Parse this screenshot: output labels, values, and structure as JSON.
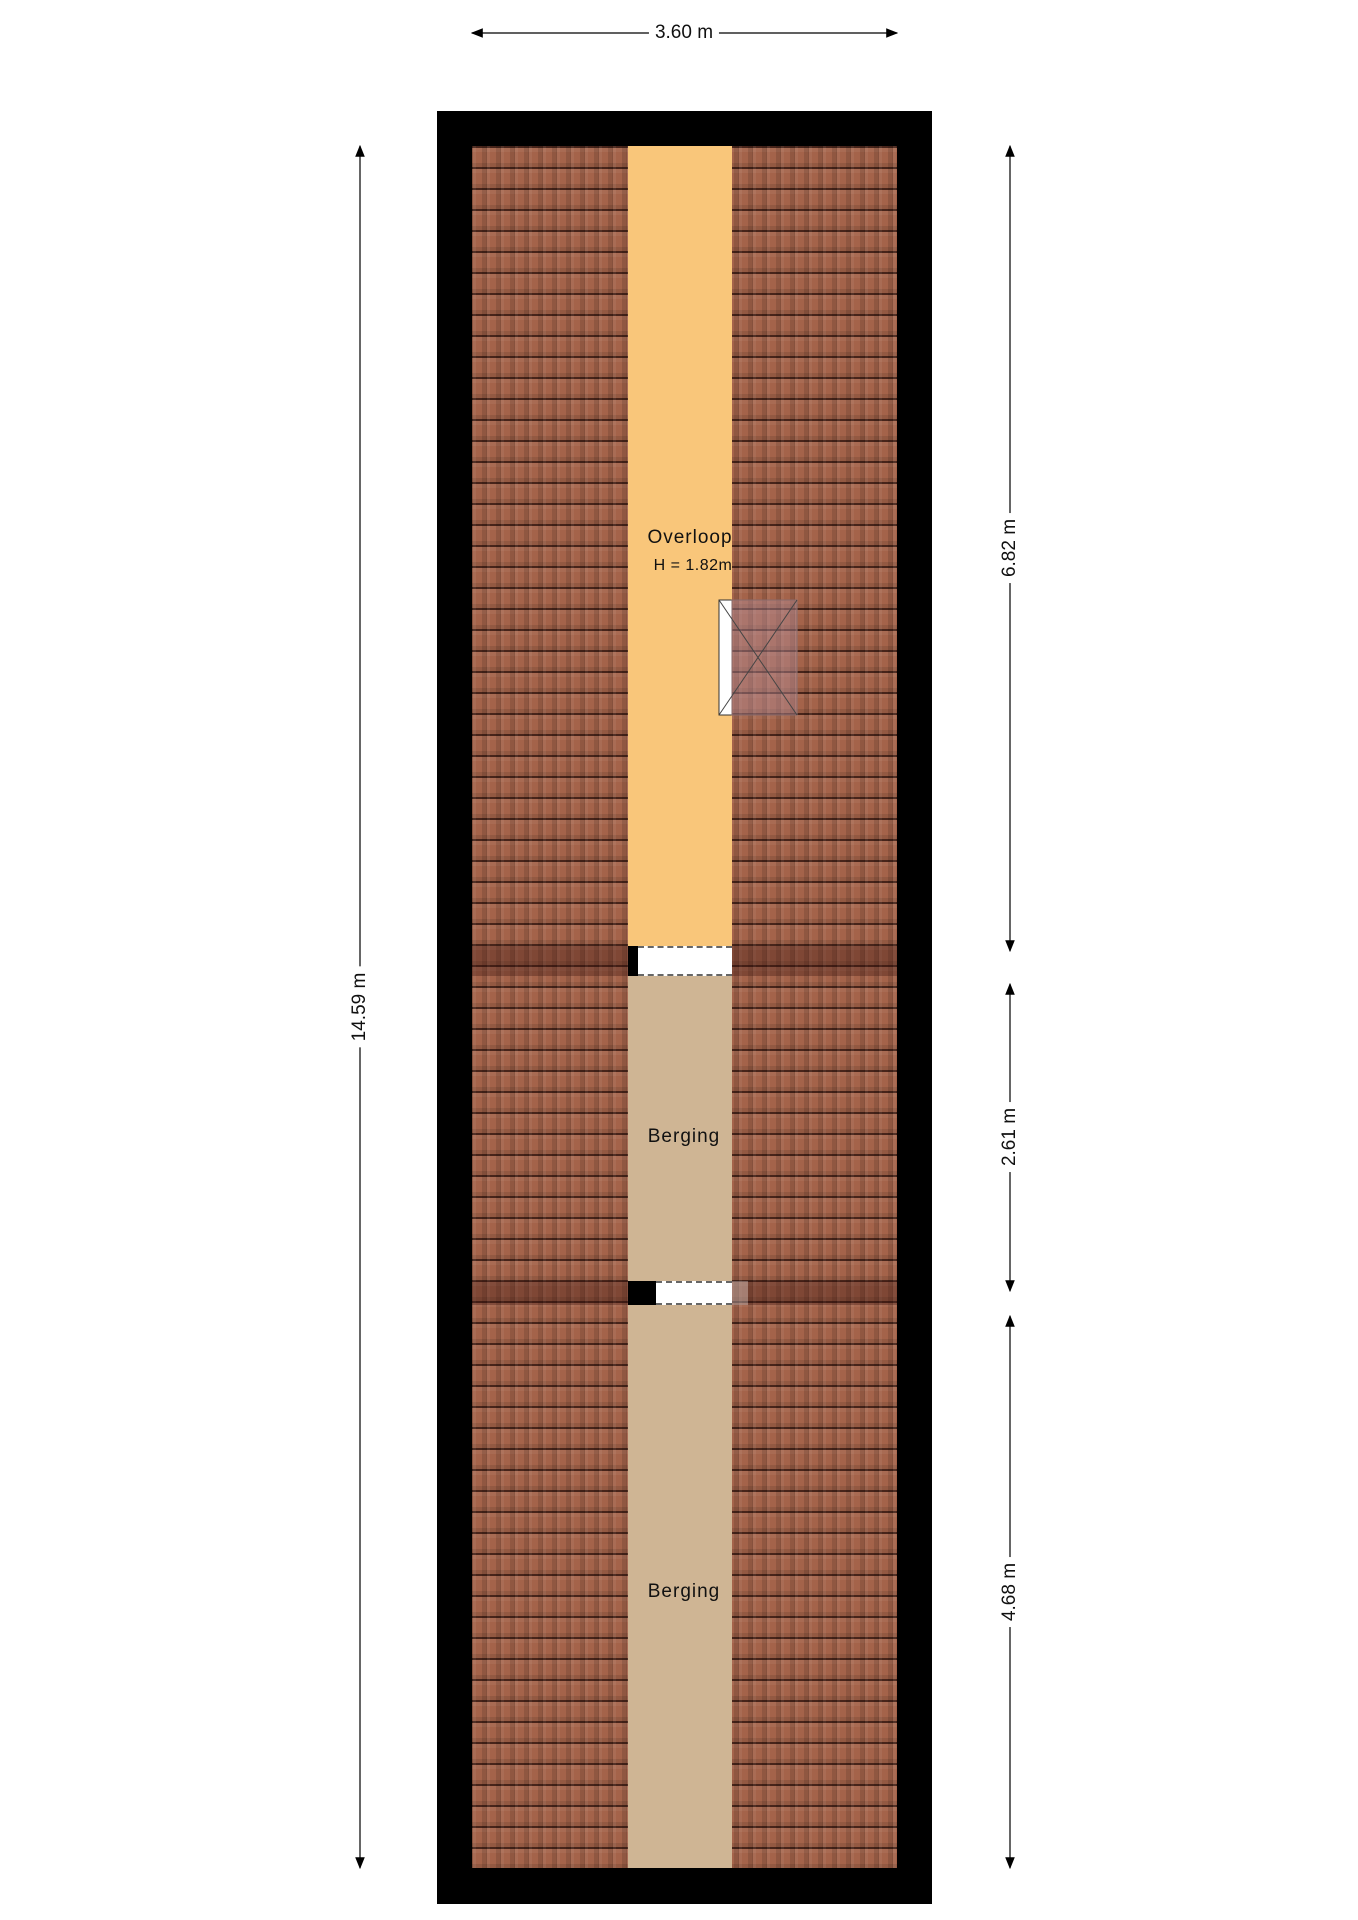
{
  "rooms": [
    {
      "name": "Overloop",
      "height_note": "H = 1.82m",
      "color": "#f9c67a"
    },
    {
      "name": "Berging",
      "color": "#cfb594"
    },
    {
      "name": "Berging",
      "color": "#cfb594"
    }
  ],
  "dimensions": {
    "width": "3.60 m",
    "total_length": "14.59 m",
    "segment_1": "6.82 m",
    "segment_2": "2.61 m",
    "segment_3": "4.68 m"
  },
  "colors": {
    "wall": "#000000",
    "roof_tiles": "#a4634a"
  }
}
